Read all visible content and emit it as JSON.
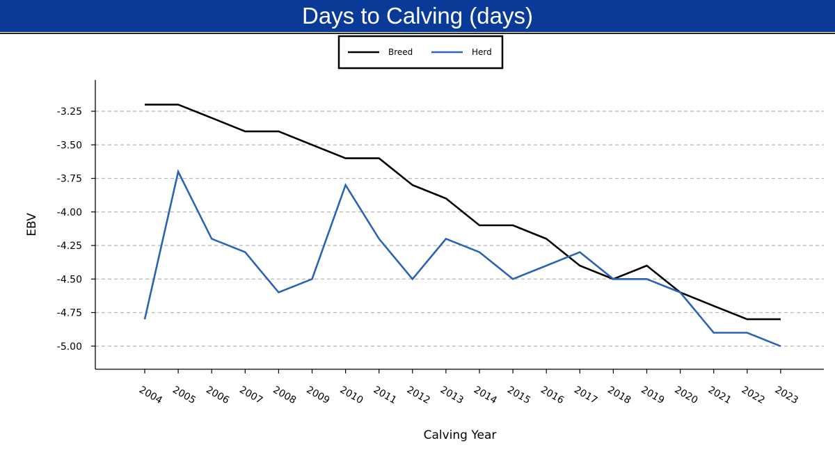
{
  "header": {
    "title": "Days to Calving (days)"
  },
  "chart_data": {
    "type": "line",
    "xlabel": "Calving Year",
    "ylabel": "EBV",
    "categories": [
      "2004",
      "2005",
      "2006",
      "2007",
      "2008",
      "2009",
      "2010",
      "2011",
      "2012",
      "2013",
      "2014",
      "2015",
      "2016",
      "2017",
      "2018",
      "2019",
      "2020",
      "2021",
      "2022",
      "2023"
    ],
    "yticks": [
      -3.25,
      -3.5,
      -3.75,
      -4.0,
      -4.25,
      -4.5,
      -4.75,
      -5.0
    ],
    "ylim": [
      -5.17,
      -3.03
    ],
    "grid": "horizontal dashed",
    "legend_position": "top-center",
    "series": [
      {
        "name": "Breed",
        "color": "#000000",
        "values": [
          -3.2,
          -3.2,
          -3.3,
          -3.4,
          -3.4,
          -3.5,
          -3.6,
          -3.6,
          -3.8,
          -3.9,
          -4.1,
          -4.1,
          -4.2,
          -4.4,
          -4.5,
          -4.4,
          -4.6,
          -4.7,
          -4.8,
          -4.8
        ]
      },
      {
        "name": "Herd",
        "color": "#2a62b6",
        "values": [
          -4.8,
          -3.7,
          -4.2,
          -4.3,
          -4.6,
          -4.5,
          -3.8,
          -4.2,
          -4.5,
          -4.2,
          -4.3,
          -4.5,
          -4.4,
          -4.3,
          -4.5,
          -4.5,
          -4.6,
          -4.9,
          -4.9,
          -5.0
        ]
      }
    ]
  }
}
